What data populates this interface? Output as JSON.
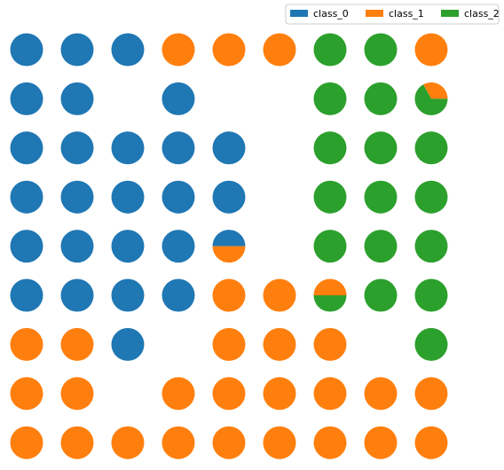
{
  "chart_data": {
    "type": "piegrid",
    "series": [
      {
        "name": "class_0",
        "color": "#1f77b4"
      },
      {
        "name": "class_1",
        "color": "#ff7f0e"
      },
      {
        "name": "class_2",
        "color": "#2ca02c"
      }
    ],
    "rows": [
      [
        [
          100,
          0,
          0
        ],
        [
          100,
          0,
          0
        ],
        [
          100,
          0,
          0
        ],
        [
          0,
          100,
          0
        ],
        [
          0,
          100,
          0
        ],
        [
          0,
          100,
          0
        ],
        [
          0,
          0,
          100
        ],
        [
          0,
          0,
          100
        ],
        [
          0,
          100,
          0
        ]
      ],
      [
        [
          100,
          0,
          0
        ],
        [
          100,
          0,
          0
        ],
        null,
        [
          100,
          0,
          0
        ],
        null,
        null,
        [
          0,
          0,
          100
        ],
        [
          0,
          0,
          100
        ],
        [
          0,
          33,
          67
        ]
      ],
      [
        [
          100,
          0,
          0
        ],
        [
          100,
          0,
          0
        ],
        [
          100,
          0,
          0
        ],
        [
          100,
          0,
          0
        ],
        [
          100,
          0,
          0
        ],
        null,
        [
          0,
          0,
          100
        ],
        [
          0,
          0,
          100
        ],
        [
          0,
          0,
          100
        ]
      ],
      [
        [
          100,
          0,
          0
        ],
        [
          100,
          0,
          0
        ],
        [
          100,
          0,
          0
        ],
        [
          100,
          0,
          0
        ],
        [
          100,
          0,
          0
        ],
        null,
        [
          0,
          0,
          100
        ],
        [
          0,
          0,
          100
        ],
        [
          0,
          0,
          100
        ]
      ],
      [
        [
          100,
          0,
          0
        ],
        [
          100,
          0,
          0
        ],
        [
          100,
          0,
          0
        ],
        [
          100,
          0,
          0
        ],
        [
          50,
          50,
          0
        ],
        null,
        [
          0,
          0,
          100
        ],
        [
          0,
          0,
          100
        ],
        [
          0,
          0,
          100
        ]
      ],
      [
        [
          100,
          0,
          0
        ],
        [
          100,
          0,
          0
        ],
        [
          100,
          0,
          0
        ],
        [
          100,
          0,
          0
        ],
        [
          0,
          100,
          0
        ],
        [
          0,
          100,
          0
        ],
        [
          0,
          50,
          50
        ],
        [
          0,
          0,
          100
        ],
        [
          0,
          0,
          100
        ]
      ],
      [
        [
          0,
          100,
          0
        ],
        [
          0,
          100,
          0
        ],
        [
          100,
          0,
          0
        ],
        null,
        [
          0,
          100,
          0
        ],
        [
          0,
          100,
          0
        ],
        [
          0,
          100,
          0
        ],
        null,
        [
          0,
          0,
          100
        ]
      ],
      [
        [
          0,
          100,
          0
        ],
        [
          0,
          100,
          0
        ],
        null,
        [
          0,
          100,
          0
        ],
        [
          0,
          100,
          0
        ],
        [
          0,
          100,
          0
        ],
        [
          0,
          100,
          0
        ],
        [
          0,
          100,
          0
        ],
        [
          0,
          100,
          0
        ]
      ],
      [
        [
          0,
          100,
          0
        ],
        [
          0,
          100,
          0
        ],
        [
          0,
          100,
          0
        ],
        [
          0,
          100,
          0
        ],
        [
          0,
          100,
          0
        ],
        [
          0,
          100,
          0
        ],
        [
          0,
          100,
          0
        ],
        [
          0,
          100,
          0
        ],
        [
          0,
          100,
          0
        ]
      ]
    ]
  }
}
